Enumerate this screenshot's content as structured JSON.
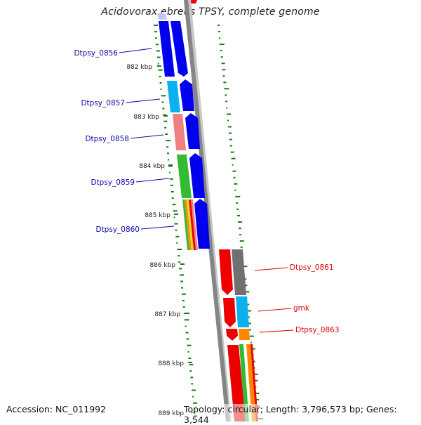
{
  "title": "Acidovorax ebreus TPSY, complete genome",
  "accession_text": "Accession: NC_011992",
  "summary_text": "Topology: circular; Length: 3,796,573 bp; Genes: 3,544",
  "colors": {
    "backbone": "#8a8a8a",
    "gc_skew_ticks": "#1a7a1a",
    "forward_label": "#0a0aaa",
    "reverse_label": "#dd0000",
    "cds_forward": "#0000ee",
    "cds_reverse": "#ee0000",
    "gene_gray": "#707070",
    "gene_cyan": "#0bb0ee",
    "gene_pink": "#f08080",
    "gene_green": "#33bb33",
    "gene_orange": "#ff8800"
  },
  "kbp_ticks": [
    "882 kbp",
    "883 kbp",
    "884 kbp",
    "885 kbp",
    "886 kbp",
    "887 kbp",
    "888 kbp",
    "889 kbp"
  ],
  "gene_labels": {
    "forward": [
      "Dtpsy_0856",
      "Dtpsy_0857",
      "Dtpsy_0858",
      "Dtpsy_0859",
      "Dtpsy_0860"
    ],
    "reverse": [
      "Dtpsy_0861",
      "gmk",
      "Dtpsy_0863"
    ]
  }
}
